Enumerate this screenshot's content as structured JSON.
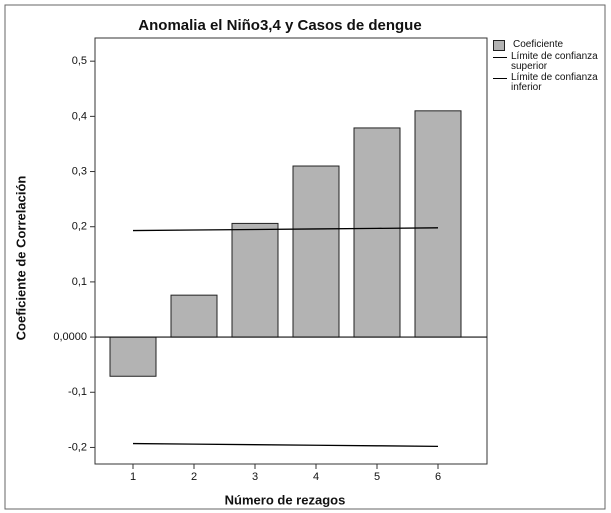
{
  "chart_data": {
    "type": "bar",
    "title": "Anomalia el Niño3,4 y Casos de dengue",
    "x_label": "Número de rezagos",
    "y_label": "Coeficiente de Correlación",
    "categories": [
      "1",
      "2",
      "3",
      "4",
      "5",
      "6"
    ],
    "series": [
      {
        "name": "Coeficiente",
        "type": "bar",
        "color": "#b3b3b3",
        "values": [
          -0.071,
          0.076,
          0.206,
          0.31,
          0.379,
          0.41
        ]
      },
      {
        "name": "Límite de confianza superior",
        "type": "line",
        "color": "#000000",
        "values": [
          0.193,
          0.194,
          0.195,
          0.196,
          0.197,
          0.198
        ]
      },
      {
        "name": "Límite de confianza inferior",
        "type": "line",
        "color": "#000000",
        "values": [
          -0.193,
          -0.194,
          -0.195,
          -0.196,
          -0.197,
          -0.198
        ]
      }
    ],
    "ylim": [
      -0.23,
      0.542
    ],
    "yticks": [
      {
        "value": 0.5,
        "label": "0,5"
      },
      {
        "value": 0.4,
        "label": "0,4"
      },
      {
        "value": 0.3,
        "label": "0,3"
      },
      {
        "value": 0.2,
        "label": "0,2"
      },
      {
        "value": 0.1,
        "label": "0,1"
      },
      {
        "value": 0,
        "label": "0,0000"
      },
      {
        "value": -0.1,
        "label": "-0,1"
      },
      {
        "value": -0.2,
        "label": "-0,2"
      }
    ]
  }
}
